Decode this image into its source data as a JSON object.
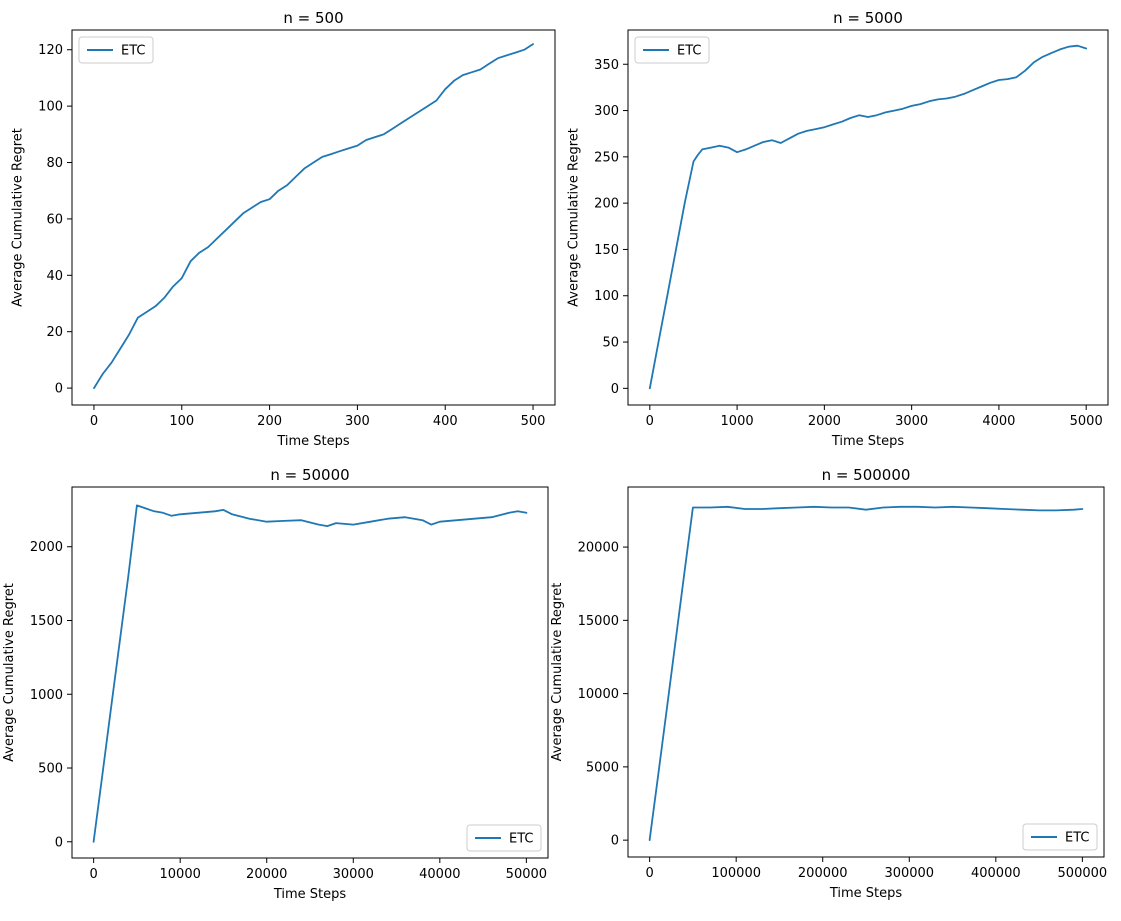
{
  "chart_data": [
    {
      "type": "line",
      "title": "n = 500",
      "xlabel": "Time Steps",
      "ylabel": "Average Cumulative Regret",
      "xlim": [
        -25,
        525
      ],
      "ylim": [
        -6,
        127
      ],
      "xticks": [
        0,
        100,
        200,
        300,
        400,
        500
      ],
      "xtick_labels": [
        "0",
        "100",
        "200",
        "300",
        "400",
        "500"
      ],
      "yticks": [
        0,
        20,
        40,
        60,
        80,
        100,
        120
      ],
      "ytick_labels": [
        "0",
        "20",
        "40",
        "60",
        "80",
        "100",
        "120"
      ],
      "grid": false,
      "legend_loc": "upper-left",
      "series": [
        {
          "name": "ETC",
          "color": "#1f77b4",
          "x": [
            0,
            10,
            20,
            30,
            40,
            50,
            60,
            70,
            80,
            90,
            100,
            110,
            120,
            130,
            140,
            150,
            160,
            170,
            180,
            190,
            200,
            210,
            220,
            230,
            240,
            250,
            260,
            270,
            280,
            290,
            300,
            310,
            320,
            330,
            340,
            350,
            360,
            370,
            380,
            390,
            400,
            410,
            420,
            430,
            440,
            450,
            460,
            470,
            480,
            490,
            500
          ],
          "y": [
            0,
            5,
            9,
            14,
            19,
            25,
            27,
            29,
            32,
            36,
            39,
            45,
            48,
            50,
            53,
            56,
            59,
            62,
            64,
            66,
            67,
            70,
            72,
            75,
            78,
            80,
            82,
            83,
            84,
            85,
            86,
            88,
            89,
            90,
            92,
            94,
            96,
            98,
            100,
            102,
            106,
            109,
            111,
            112,
            113,
            115,
            117,
            118,
            119,
            120,
            122
          ]
        }
      ]
    },
    {
      "type": "line",
      "title": "n = 5000",
      "xlabel": "Time Steps",
      "ylabel": "Average Cumulative Regret",
      "xlim": [
        -250,
        5250
      ],
      "ylim": [
        -18,
        387
      ],
      "xticks": [
        0,
        1000,
        2000,
        3000,
        4000,
        5000
      ],
      "xtick_labels": [
        "0",
        "1000",
        "2000",
        "3000",
        "4000",
        "5000"
      ],
      "yticks": [
        0,
        50,
        100,
        150,
        200,
        250,
        300,
        350
      ],
      "ytick_labels": [
        "0",
        "50",
        "100",
        "150",
        "200",
        "250",
        "300",
        "350"
      ],
      "grid": false,
      "legend_loc": "upper-left",
      "series": [
        {
          "name": "ETC",
          "color": "#1f77b4",
          "x": [
            0,
            100,
            200,
            300,
            400,
            500,
            550,
            600,
            700,
            800,
            900,
            1000,
            1100,
            1200,
            1300,
            1400,
            1500,
            1600,
            1700,
            1800,
            1900,
            2000,
            2100,
            2200,
            2300,
            2400,
            2500,
            2600,
            2700,
            2800,
            2900,
            3000,
            3100,
            3200,
            3300,
            3400,
            3500,
            3600,
            3700,
            3800,
            3900,
            4000,
            4100,
            4200,
            4300,
            4400,
            4500,
            4600,
            4700,
            4800,
            4900,
            5000
          ],
          "y": [
            0,
            50,
            100,
            150,
            200,
            245,
            252,
            258,
            260,
            262,
            260,
            255,
            258,
            262,
            266,
            268,
            265,
            270,
            275,
            278,
            280,
            282,
            285,
            288,
            292,
            295,
            293,
            295,
            298,
            300,
            302,
            305,
            307,
            310,
            312,
            313,
            315,
            318,
            322,
            326,
            330,
            333,
            334,
            336,
            343,
            352,
            358,
            362,
            366,
            369,
            370,
            367
          ]
        }
      ]
    },
    {
      "type": "line",
      "title": "n = 50000",
      "xlabel": "Time Steps",
      "ylabel": "Average Cumulative Regret",
      "xlim": [
        -2500,
        52500
      ],
      "ylim": [
        -110,
        2405
      ],
      "xticks": [
        0,
        10000,
        20000,
        30000,
        40000,
        50000
      ],
      "xtick_labels": [
        "0",
        "10000",
        "20000",
        "30000",
        "40000",
        "50000"
      ],
      "yticks": [
        0,
        500,
        1000,
        1500,
        2000
      ],
      "ytick_labels": [
        "0",
        "500",
        "1000",
        "1500",
        "2000"
      ],
      "grid": false,
      "legend_loc": "lower-right",
      "series": [
        {
          "name": "ETC",
          "color": "#1f77b4",
          "x": [
            0,
            1000,
            2000,
            3000,
            4000,
            5000,
            6000,
            7000,
            8000,
            9000,
            10000,
            12000,
            14000,
            15000,
            16000,
            18000,
            20000,
            22000,
            24000,
            26000,
            27000,
            28000,
            30000,
            32000,
            34000,
            36000,
            38000,
            39000,
            40000,
            42000,
            44000,
            46000,
            48000,
            49000,
            50000
          ],
          "y": [
            0,
            450,
            900,
            1350,
            1800,
            2280,
            2260,
            2240,
            2230,
            2210,
            2220,
            2230,
            2240,
            2250,
            2220,
            2190,
            2170,
            2175,
            2180,
            2150,
            2140,
            2160,
            2150,
            2170,
            2190,
            2200,
            2180,
            2150,
            2170,
            2180,
            2190,
            2200,
            2230,
            2240,
            2230
          ]
        }
      ]
    },
    {
      "type": "line",
      "title": "n = 500000",
      "xlabel": "Time Steps",
      "ylabel": "Average Cumulative Regret",
      "xlim": [
        -25000,
        525000
      ],
      "ylim": [
        -1150,
        24100
      ],
      "xticks": [
        0,
        100000,
        200000,
        300000,
        400000,
        500000
      ],
      "xtick_labels": [
        "0",
        "100000",
        "200000",
        "300000",
        "400000",
        "500000"
      ],
      "yticks": [
        0,
        5000,
        10000,
        15000,
        20000
      ],
      "ytick_labels": [
        "0",
        "5000",
        "10000",
        "15000",
        "20000"
      ],
      "grid": false,
      "legend_loc": "lower-right",
      "series": [
        {
          "name": "ETC",
          "color": "#1f77b4",
          "x": [
            0,
            10000,
            20000,
            30000,
            40000,
            50000,
            70000,
            90000,
            110000,
            130000,
            150000,
            170000,
            190000,
            210000,
            230000,
            250000,
            270000,
            290000,
            310000,
            330000,
            350000,
            370000,
            390000,
            410000,
            430000,
            450000,
            470000,
            490000,
            500000
          ],
          "y": [
            0,
            4500,
            9000,
            13600,
            18200,
            22700,
            22700,
            22750,
            22600,
            22600,
            22650,
            22700,
            22750,
            22700,
            22700,
            22550,
            22700,
            22750,
            22750,
            22700,
            22750,
            22700,
            22650,
            22600,
            22550,
            22500,
            22500,
            22550,
            22600
          ]
        }
      ]
    }
  ]
}
